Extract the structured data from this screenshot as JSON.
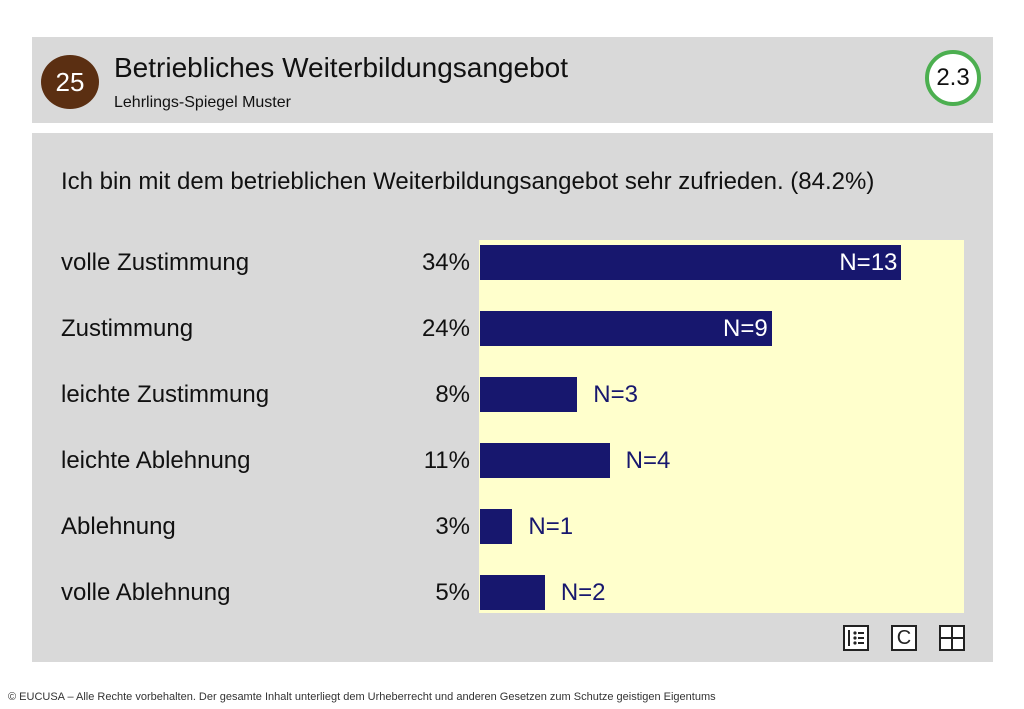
{
  "header": {
    "page_number": "25",
    "title": "Betriebliches Weiterbildungsangebot",
    "subtitle": "Lehrlings-Spiegel Muster",
    "section": "2.3"
  },
  "chart_data": {
    "type": "bar",
    "title": "Ich bin mit dem betrieblichen Weiterbildungsangebot sehr zufrieden. (84.2%)",
    "categories": [
      "volle Zustimmung",
      "Zustimmung",
      "leichte Zustimmung",
      "leichte Ablehnung",
      "Ablehnung",
      "volle Ablehnung"
    ],
    "percent_labels": [
      "34%",
      "24%",
      "8%",
      "11%",
      "3%",
      "5%"
    ],
    "values": [
      13,
      9,
      3,
      4,
      1,
      2
    ],
    "n_labels": [
      "N=13",
      "N=9",
      "N=3",
      "N=4",
      "N=1",
      "N=2"
    ],
    "xlim": [
      0,
      14.5
    ],
    "bar_color": "#17176e",
    "background_color": "#ffffcc"
  },
  "toolbar": {
    "icons": [
      "list-icon",
      "c-icon",
      "grid-icon"
    ],
    "c_label": "C"
  },
  "footer": {
    "text": "© EUCUSA – Alle Rechte vorbehalten. Der gesamte Inhalt unterliegt dem Urheberrecht und anderen Gesetzen zum Schutze geistigen Eigentums"
  }
}
